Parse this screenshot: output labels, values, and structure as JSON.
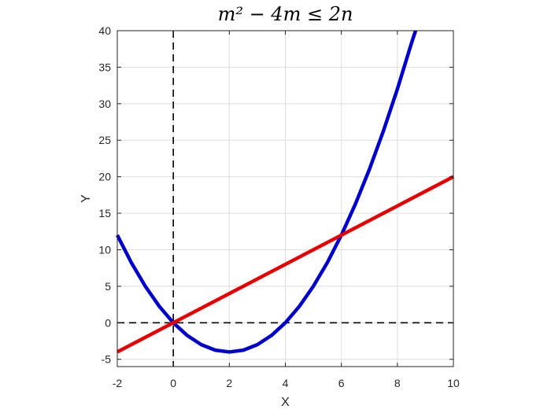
{
  "chart_data": {
    "type": "line",
    "title": "m² − 4m ≤ 2n",
    "xlabel": "X",
    "ylabel": "Y",
    "xlim": [
      -2,
      10
    ],
    "ylim": [
      -6,
      40
    ],
    "xticks": [
      "-2",
      "0",
      "2",
      "4",
      "6",
      "8",
      "10"
    ],
    "yticks": [
      "-5",
      "0",
      "5",
      "10",
      "15",
      "20",
      "25",
      "30",
      "35",
      "40"
    ],
    "grid": true,
    "series": [
      {
        "color": "#0000cc",
        "x": [
          -2,
          -1.5,
          -1,
          -0.5,
          0,
          0.5,
          1,
          1.5,
          2,
          2.5,
          3,
          3.5,
          4,
          4.5,
          5,
          5.5,
          6,
          6.5,
          7,
          7.5,
          8,
          8.5,
          8.65
        ],
        "y": [
          12,
          8.25,
          5,
          2.25,
          0,
          -1.75,
          -3,
          -3.75,
          -4,
          -3.75,
          -3,
          -1.75,
          0,
          2.25,
          5,
          8.25,
          12,
          16.25,
          21,
          26.25,
          32,
          38.25,
          40
        ]
      },
      {
        "color": "#e60000",
        "x": [
          -2,
          10
        ],
        "y": [
          -4,
          20
        ]
      }
    ],
    "reference_lines": [
      {
        "orientation": "vertical",
        "value": 0,
        "style": "dashed",
        "color": "#000000"
      },
      {
        "orientation": "horizontal",
        "value": 0,
        "style": "dashed",
        "color": "#000000"
      }
    ]
  }
}
